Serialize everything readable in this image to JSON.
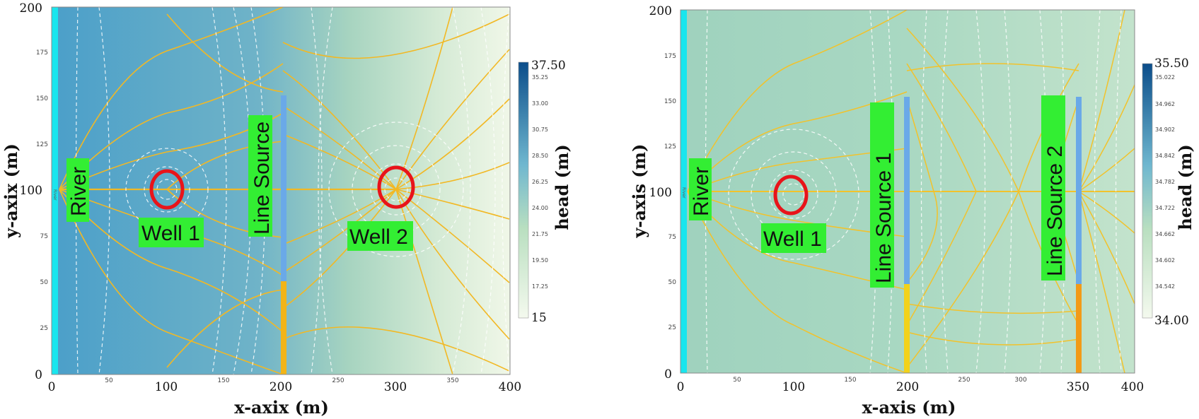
{
  "panels": [
    {
      "id": "left",
      "x_axis_title": "x-axix (m)",
      "y_axis_title": "y-axix (m)",
      "colorbar_title": "head (m)",
      "x_ticks": [
        "0",
        "50",
        "100",
        "150",
        "200",
        "250",
        "300",
        "350",
        "400"
      ],
      "y_ticks": [
        "0",
        "25",
        "50",
        "75",
        "100",
        "125",
        "150",
        "175",
        "200"
      ],
      "colorbar_min": "15",
      "colorbar_max": "37.50",
      "colorbar_ticks": [
        "35.25",
        "33.00",
        "30.75",
        "28.50",
        "26.25",
        "24.00",
        "21.75",
        "19.50",
        "17.25"
      ],
      "labels": {
        "river": "River",
        "well1": "Well 1",
        "line_source": "Line Source",
        "well2": "Well 2"
      },
      "river_mini": "River"
    },
    {
      "id": "right",
      "x_axis_title": "x-axis (m)",
      "y_axis_title": "y-axis (m)",
      "colorbar_title": "head (m)",
      "x_ticks": [
        "0",
        "50",
        "100",
        "150",
        "200",
        "250",
        "300",
        "350",
        "400"
      ],
      "y_ticks": [
        "0",
        "25",
        "50",
        "75",
        "100",
        "125",
        "150",
        "175",
        "200"
      ],
      "colorbar_min": "34.00",
      "colorbar_max": "35.50",
      "colorbar_ticks": [
        "35.022",
        "34.962",
        "34.902",
        "34.842",
        "34.782",
        "34.722",
        "34.662",
        "34.602",
        "34.542"
      ],
      "labels": {
        "river": "River",
        "well1": "Well 1",
        "line_source1": "Line Source 1",
        "line_source2": "Line Source 2"
      },
      "river_mini": "River"
    }
  ],
  "colors": {
    "left_field_high": "#4a9ec8",
    "left_field_low": "#eef6e6",
    "right_field": "#a7d5bf",
    "river": "#19e6ee",
    "streamline": "#f2b824",
    "equipotential": "#ffffff",
    "well_ring": "#e8141a",
    "label_bg": "#33ee33",
    "line_source_blue": "#6aa9e8",
    "line_source_yellow": "#f2b417"
  }
}
